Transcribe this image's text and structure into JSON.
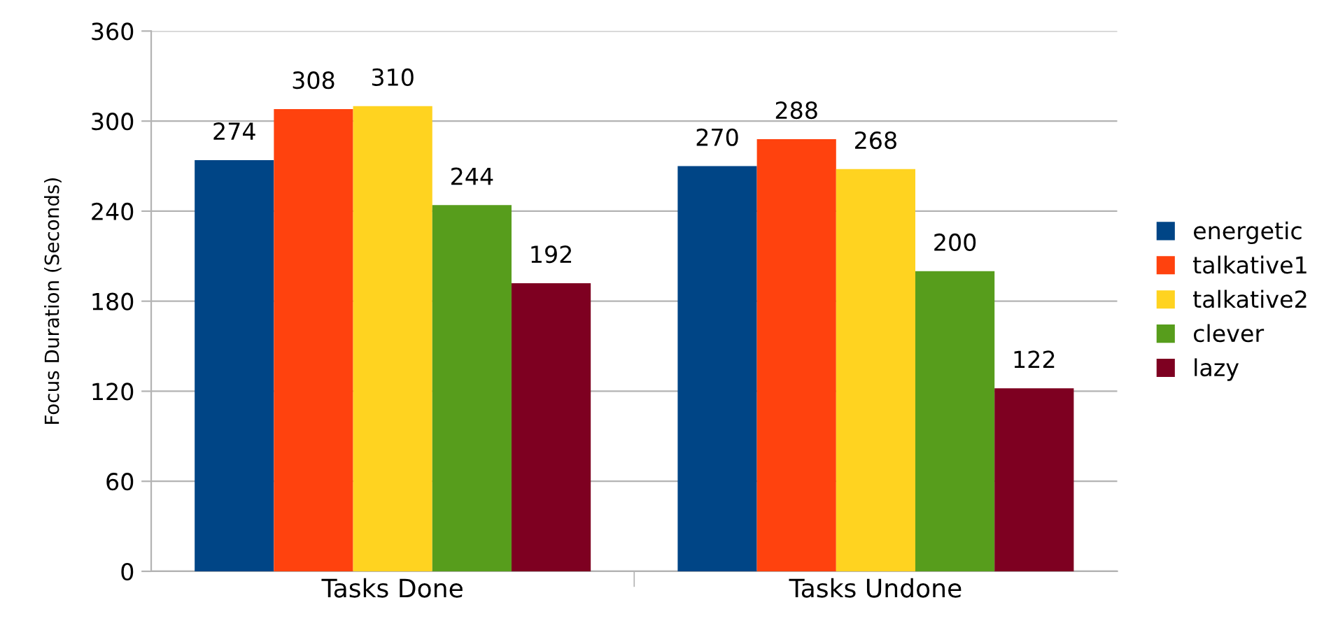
{
  "chart_data": {
    "type": "bar",
    "ylabel": "Focus Duration (Seconds)",
    "categories": [
      "Tasks Done",
      "Tasks Undone"
    ],
    "series": [
      {
        "name": "energetic",
        "color": "#004586",
        "values": [
          274,
          270
        ]
      },
      {
        "name": "talkative1",
        "color": "#ff420e",
        "values": [
          308,
          288
        ]
      },
      {
        "name": "talkative2",
        "color": "#ffd320",
        "values": [
          310,
          268
        ]
      },
      {
        "name": "clever",
        "color": "#579d1c",
        "values": [
          244,
          200
        ]
      },
      {
        "name": "lazy",
        "color": "#7e0021",
        "values": [
          192,
          122
        ]
      }
    ],
    "ylim": [
      0,
      360
    ],
    "yticks": [
      0,
      60,
      120,
      180,
      240,
      300,
      360
    ],
    "grid": "y",
    "legend": "right",
    "data_labels": true
  }
}
